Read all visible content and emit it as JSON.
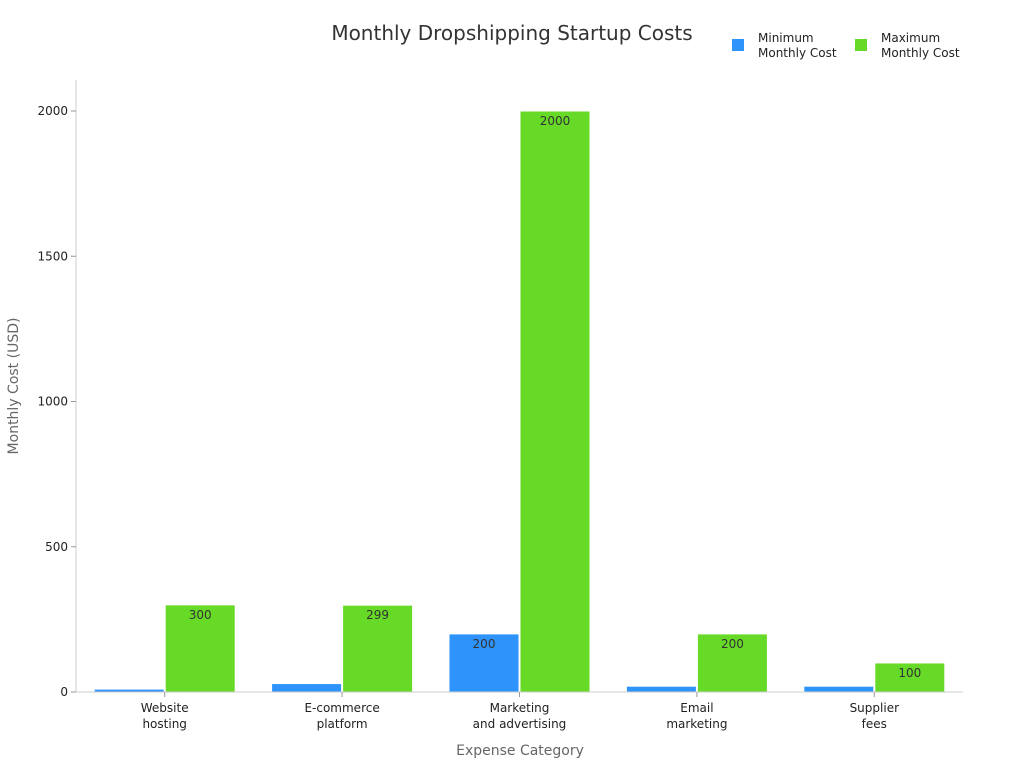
{
  "chart_data": {
    "type": "bar",
    "title": "Monthly Dropshipping Startup Costs",
    "xlabel": "Expense Category",
    "ylabel": "Monthly Cost (USD)",
    "ylim": [
      0,
      2100
    ],
    "yticks": [
      0,
      500,
      1000,
      1500,
      2000
    ],
    "grid": false,
    "legend_position": "top-right",
    "categories": [
      [
        "Website",
        "hosting"
      ],
      [
        "E-commerce",
        "platform"
      ],
      [
        "Marketing",
        "and advertising"
      ],
      [
        "Email",
        "marketing"
      ],
      [
        "Supplier",
        "fees"
      ]
    ],
    "series": [
      {
        "name": "Minimum Monthly Cost",
        "legend_lines": [
          "Minimum",
          "Monthly Cost"
        ],
        "color": "#2E93FA",
        "values": [
          10,
          29,
          200,
          20,
          20
        ],
        "labels": [
          "",
          "",
          "200",
          "",
          ""
        ]
      },
      {
        "name": "Maximum Monthly Cost",
        "legend_lines": [
          "Maximum",
          "Monthly Cost"
        ],
        "color": "#66DA26",
        "values": [
          300,
          299,
          2000,
          200,
          100
        ],
        "labels": [
          "300",
          "299",
          "2000",
          "200",
          "100"
        ]
      }
    ]
  }
}
